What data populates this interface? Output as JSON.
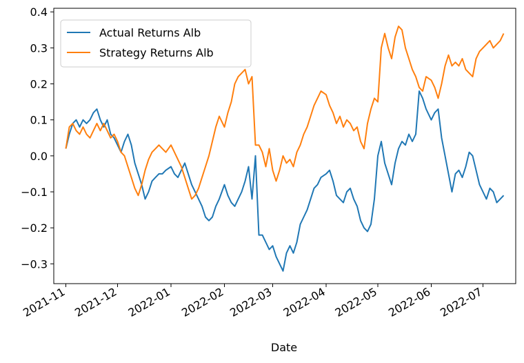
{
  "chart_data": {
    "type": "line",
    "xlabel": "Date",
    "ylabel": "",
    "ylim": [
      -0.355,
      0.41
    ],
    "xlim": [
      "2021-10-25",
      "2022-07-20"
    ],
    "x_ticks": [
      "2021-11-01",
      "2021-12-01",
      "2022-01-01",
      "2022-02-01",
      "2022-03-01",
      "2022-04-01",
      "2022-05-01",
      "2022-06-01",
      "2022-07-01"
    ],
    "x_tick_labels": [
      "2021-11",
      "2021-12",
      "2022-01",
      "2022-02",
      "2022-03",
      "2022-04",
      "2022-05",
      "2022-06",
      "2022-07"
    ],
    "y_ticks": [
      -0.3,
      -0.2,
      -0.1,
      0.0,
      0.1,
      0.2,
      0.3,
      0.4
    ],
    "y_tick_labels": [
      "−0.3",
      "−0.2",
      "−0.1",
      "0.0",
      "0.1",
      "0.2",
      "0.3",
      "0.4"
    ],
    "legend_position": "top-left",
    "grid": false,
    "series": [
      {
        "name": "Actual Returns Alb",
        "color": "#1f77b4",
        "points": [
          [
            "2021-11-01",
            0.02
          ],
          [
            "2021-11-03",
            0.06
          ],
          [
            "2021-11-05",
            0.09
          ],
          [
            "2021-11-07",
            0.1
          ],
          [
            "2021-11-09",
            0.08
          ],
          [
            "2021-11-11",
            0.1
          ],
          [
            "2021-11-13",
            0.09
          ],
          [
            "2021-11-15",
            0.1
          ],
          [
            "2021-11-17",
            0.12
          ],
          [
            "2021-11-19",
            0.13
          ],
          [
            "2021-11-21",
            0.1
          ],
          [
            "2021-11-23",
            0.08
          ],
          [
            "2021-11-25",
            0.1
          ],
          [
            "2021-11-27",
            0.06
          ],
          [
            "2021-11-29",
            0.05
          ],
          [
            "2021-12-01",
            0.03
          ],
          [
            "2021-12-03",
            0.01
          ],
          [
            "2021-12-05",
            0.04
          ],
          [
            "2021-12-07",
            0.06
          ],
          [
            "2021-12-09",
            0.03
          ],
          [
            "2021-12-11",
            -0.02
          ],
          [
            "2021-12-13",
            -0.05
          ],
          [
            "2021-12-15",
            -0.08
          ],
          [
            "2021-12-17",
            -0.12
          ],
          [
            "2021-12-19",
            -0.1
          ],
          [
            "2021-12-21",
            -0.07
          ],
          [
            "2021-12-23",
            -0.06
          ],
          [
            "2021-12-25",
            -0.05
          ],
          [
            "2021-12-27",
            -0.05
          ],
          [
            "2021-12-29",
            -0.04
          ],
          [
            "2022-01-01",
            -0.03
          ],
          [
            "2022-01-03",
            -0.05
          ],
          [
            "2022-01-05",
            -0.06
          ],
          [
            "2022-01-07",
            -0.04
          ],
          [
            "2022-01-09",
            -0.02
          ],
          [
            "2022-01-11",
            -0.05
          ],
          [
            "2022-01-13",
            -0.08
          ],
          [
            "2022-01-15",
            -0.1
          ],
          [
            "2022-01-17",
            -0.12
          ],
          [
            "2022-01-19",
            -0.14
          ],
          [
            "2022-01-21",
            -0.17
          ],
          [
            "2022-01-23",
            -0.18
          ],
          [
            "2022-01-25",
            -0.17
          ],
          [
            "2022-01-27",
            -0.14
          ],
          [
            "2022-01-29",
            -0.12
          ],
          [
            "2022-02-01",
            -0.08
          ],
          [
            "2022-02-03",
            -0.11
          ],
          [
            "2022-02-05",
            -0.13
          ],
          [
            "2022-02-07",
            -0.14
          ],
          [
            "2022-02-09",
            -0.12
          ],
          [
            "2022-02-11",
            -0.1
          ],
          [
            "2022-02-13",
            -0.07
          ],
          [
            "2022-02-15",
            -0.03
          ],
          [
            "2022-02-17",
            -0.12
          ],
          [
            "2022-02-19",
            0.0
          ],
          [
            "2022-02-21",
            -0.22
          ],
          [
            "2022-02-23",
            -0.22
          ],
          [
            "2022-02-25",
            -0.24
          ],
          [
            "2022-02-27",
            -0.26
          ],
          [
            "2022-03-01",
            -0.25
          ],
          [
            "2022-03-03",
            -0.28
          ],
          [
            "2022-03-05",
            -0.3
          ],
          [
            "2022-03-07",
            -0.32
          ],
          [
            "2022-03-09",
            -0.27
          ],
          [
            "2022-03-11",
            -0.25
          ],
          [
            "2022-03-13",
            -0.27
          ],
          [
            "2022-03-15",
            -0.24
          ],
          [
            "2022-03-17",
            -0.19
          ],
          [
            "2022-03-19",
            -0.17
          ],
          [
            "2022-03-21",
            -0.15
          ],
          [
            "2022-03-23",
            -0.12
          ],
          [
            "2022-03-25",
            -0.09
          ],
          [
            "2022-03-27",
            -0.08
          ],
          [
            "2022-03-29",
            -0.06
          ],
          [
            "2022-04-01",
            -0.05
          ],
          [
            "2022-04-03",
            -0.04
          ],
          [
            "2022-04-05",
            -0.07
          ],
          [
            "2022-04-07",
            -0.11
          ],
          [
            "2022-04-09",
            -0.12
          ],
          [
            "2022-04-11",
            -0.13
          ],
          [
            "2022-04-13",
            -0.1
          ],
          [
            "2022-04-15",
            -0.09
          ],
          [
            "2022-04-17",
            -0.12
          ],
          [
            "2022-04-19",
            -0.14
          ],
          [
            "2022-04-21",
            -0.18
          ],
          [
            "2022-04-23",
            -0.2
          ],
          [
            "2022-04-25",
            -0.21
          ],
          [
            "2022-04-27",
            -0.19
          ],
          [
            "2022-04-29",
            -0.12
          ],
          [
            "2022-05-01",
            0.0
          ],
          [
            "2022-05-03",
            0.04
          ],
          [
            "2022-05-05",
            -0.02
          ],
          [
            "2022-05-07",
            -0.05
          ],
          [
            "2022-05-09",
            -0.08
          ],
          [
            "2022-05-11",
            -0.02
          ],
          [
            "2022-05-13",
            0.02
          ],
          [
            "2022-05-15",
            0.04
          ],
          [
            "2022-05-17",
            0.03
          ],
          [
            "2022-05-19",
            0.06
          ],
          [
            "2022-05-21",
            0.04
          ],
          [
            "2022-05-23",
            0.06
          ],
          [
            "2022-05-25",
            0.18
          ],
          [
            "2022-05-27",
            0.16
          ],
          [
            "2022-05-29",
            0.13
          ],
          [
            "2022-06-01",
            0.1
          ],
          [
            "2022-06-03",
            0.12
          ],
          [
            "2022-06-05",
            0.13
          ],
          [
            "2022-06-07",
            0.05
          ],
          [
            "2022-06-09",
            0.0
          ],
          [
            "2022-06-11",
            -0.05
          ],
          [
            "2022-06-13",
            -0.1
          ],
          [
            "2022-06-15",
            -0.05
          ],
          [
            "2022-06-17",
            -0.04
          ],
          [
            "2022-06-19",
            -0.06
          ],
          [
            "2022-06-21",
            -0.03
          ],
          [
            "2022-06-23",
            0.01
          ],
          [
            "2022-06-25",
            0.0
          ],
          [
            "2022-06-27",
            -0.04
          ],
          [
            "2022-06-29",
            -0.08
          ],
          [
            "2022-07-01",
            -0.1
          ],
          [
            "2022-07-03",
            -0.12
          ],
          [
            "2022-07-05",
            -0.09
          ],
          [
            "2022-07-07",
            -0.1
          ],
          [
            "2022-07-09",
            -0.13
          ],
          [
            "2022-07-11",
            -0.12
          ],
          [
            "2022-07-13",
            -0.11
          ]
        ]
      },
      {
        "name": "Strategy Returns Alb",
        "color": "#ff7f0e",
        "points": [
          [
            "2021-11-01",
            0.02
          ],
          [
            "2021-11-03",
            0.08
          ],
          [
            "2021-11-05",
            0.09
          ],
          [
            "2021-11-07",
            0.07
          ],
          [
            "2021-11-09",
            0.06
          ],
          [
            "2021-11-11",
            0.08
          ],
          [
            "2021-11-13",
            0.06
          ],
          [
            "2021-11-15",
            0.05
          ],
          [
            "2021-11-17",
            0.07
          ],
          [
            "2021-11-19",
            0.09
          ],
          [
            "2021-11-21",
            0.07
          ],
          [
            "2021-11-23",
            0.09
          ],
          [
            "2021-11-25",
            0.07
          ],
          [
            "2021-11-27",
            0.05
          ],
          [
            "2021-11-29",
            0.06
          ],
          [
            "2021-12-01",
            0.04
          ],
          [
            "2021-12-03",
            0.01
          ],
          [
            "2021-12-05",
            0.0
          ],
          [
            "2021-12-07",
            -0.03
          ],
          [
            "2021-12-09",
            -0.06
          ],
          [
            "2021-12-11",
            -0.09
          ],
          [
            "2021-12-13",
            -0.11
          ],
          [
            "2021-12-15",
            -0.08
          ],
          [
            "2021-12-17",
            -0.04
          ],
          [
            "2021-12-19",
            -0.01
          ],
          [
            "2021-12-21",
            0.01
          ],
          [
            "2021-12-23",
            0.02
          ],
          [
            "2021-12-25",
            0.03
          ],
          [
            "2021-12-27",
            0.02
          ],
          [
            "2021-12-29",
            0.01
          ],
          [
            "2022-01-01",
            0.03
          ],
          [
            "2022-01-03",
            0.01
          ],
          [
            "2022-01-05",
            -0.01
          ],
          [
            "2022-01-07",
            -0.03
          ],
          [
            "2022-01-09",
            -0.06
          ],
          [
            "2022-01-11",
            -0.09
          ],
          [
            "2022-01-13",
            -0.12
          ],
          [
            "2022-01-15",
            -0.11
          ],
          [
            "2022-01-17",
            -0.09
          ],
          [
            "2022-01-19",
            -0.06
          ],
          [
            "2022-01-21",
            -0.03
          ],
          [
            "2022-01-23",
            0.0
          ],
          [
            "2022-01-25",
            0.04
          ],
          [
            "2022-01-27",
            0.08
          ],
          [
            "2022-01-29",
            0.11
          ],
          [
            "2022-02-01",
            0.08
          ],
          [
            "2022-02-03",
            0.12
          ],
          [
            "2022-02-05",
            0.15
          ],
          [
            "2022-02-07",
            0.2
          ],
          [
            "2022-02-09",
            0.22
          ],
          [
            "2022-02-11",
            0.23
          ],
          [
            "2022-02-13",
            0.24
          ],
          [
            "2022-02-15",
            0.2
          ],
          [
            "2022-02-17",
            0.22
          ],
          [
            "2022-02-19",
            0.03
          ],
          [
            "2022-02-21",
            0.03
          ],
          [
            "2022-02-23",
            0.01
          ],
          [
            "2022-02-25",
            -0.03
          ],
          [
            "2022-02-27",
            0.02
          ],
          [
            "2022-03-01",
            -0.04
          ],
          [
            "2022-03-03",
            -0.07
          ],
          [
            "2022-03-05",
            -0.04
          ],
          [
            "2022-03-07",
            0.0
          ],
          [
            "2022-03-09",
            -0.02
          ],
          [
            "2022-03-11",
            -0.01
          ],
          [
            "2022-03-13",
            -0.03
          ],
          [
            "2022-03-15",
            0.01
          ],
          [
            "2022-03-17",
            0.03
          ],
          [
            "2022-03-19",
            0.06
          ],
          [
            "2022-03-21",
            0.08
          ],
          [
            "2022-03-23",
            0.11
          ],
          [
            "2022-03-25",
            0.14
          ],
          [
            "2022-03-27",
            0.16
          ],
          [
            "2022-03-29",
            0.18
          ],
          [
            "2022-04-01",
            0.17
          ],
          [
            "2022-04-03",
            0.14
          ],
          [
            "2022-04-05",
            0.12
          ],
          [
            "2022-04-07",
            0.09
          ],
          [
            "2022-04-09",
            0.11
          ],
          [
            "2022-04-11",
            0.08
          ],
          [
            "2022-04-13",
            0.1
          ],
          [
            "2022-04-15",
            0.09
          ],
          [
            "2022-04-17",
            0.07
          ],
          [
            "2022-04-19",
            0.08
          ],
          [
            "2022-04-21",
            0.04
          ],
          [
            "2022-04-23",
            0.02
          ],
          [
            "2022-04-25",
            0.09
          ],
          [
            "2022-04-27",
            0.13
          ],
          [
            "2022-04-29",
            0.16
          ],
          [
            "2022-05-01",
            0.15
          ],
          [
            "2022-05-03",
            0.3
          ],
          [
            "2022-05-05",
            0.34
          ],
          [
            "2022-05-07",
            0.3
          ],
          [
            "2022-05-09",
            0.27
          ],
          [
            "2022-05-11",
            0.33
          ],
          [
            "2022-05-13",
            0.36
          ],
          [
            "2022-05-15",
            0.35
          ],
          [
            "2022-05-17",
            0.3
          ],
          [
            "2022-05-19",
            0.27
          ],
          [
            "2022-05-21",
            0.24
          ],
          [
            "2022-05-23",
            0.22
          ],
          [
            "2022-05-25",
            0.19
          ],
          [
            "2022-05-27",
            0.18
          ],
          [
            "2022-05-29",
            0.22
          ],
          [
            "2022-06-01",
            0.21
          ],
          [
            "2022-06-03",
            0.19
          ],
          [
            "2022-06-05",
            0.16
          ],
          [
            "2022-06-07",
            0.2
          ],
          [
            "2022-06-09",
            0.25
          ],
          [
            "2022-06-11",
            0.28
          ],
          [
            "2022-06-13",
            0.25
          ],
          [
            "2022-06-15",
            0.26
          ],
          [
            "2022-06-17",
            0.25
          ],
          [
            "2022-06-19",
            0.27
          ],
          [
            "2022-06-21",
            0.24
          ],
          [
            "2022-06-23",
            0.23
          ],
          [
            "2022-06-25",
            0.22
          ],
          [
            "2022-06-27",
            0.27
          ],
          [
            "2022-06-29",
            0.29
          ],
          [
            "2022-07-01",
            0.3
          ],
          [
            "2022-07-03",
            0.31
          ],
          [
            "2022-07-05",
            0.32
          ],
          [
            "2022-07-07",
            0.3
          ],
          [
            "2022-07-09",
            0.31
          ],
          [
            "2022-07-11",
            0.32
          ],
          [
            "2022-07-13",
            0.34
          ]
        ]
      }
    ]
  }
}
